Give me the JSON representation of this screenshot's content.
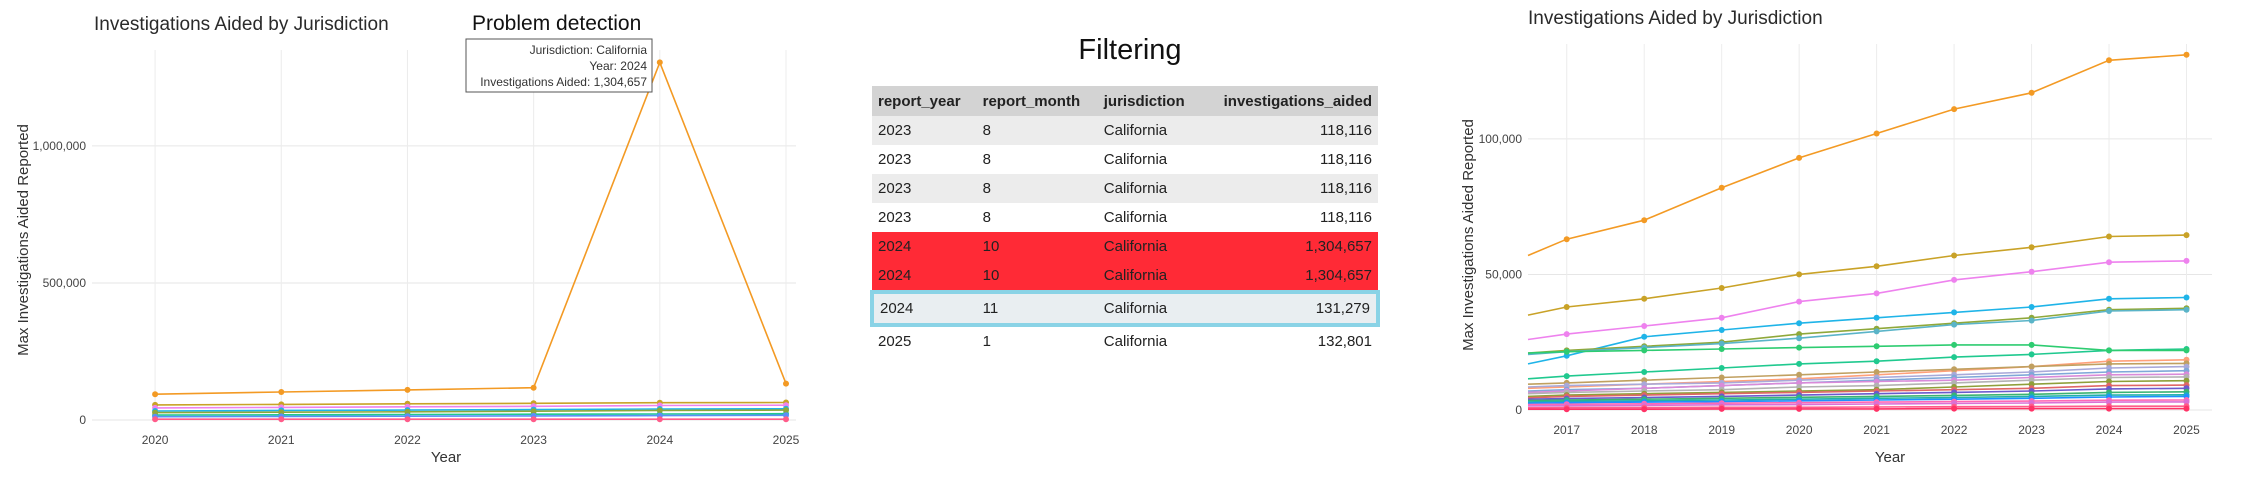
{
  "left_panel": {
    "problem_title": "Problem detection",
    "tooltip": {
      "line1": "Jurisdiction: California",
      "line2": "Year: 2024",
      "line3": "Investigations Aided: 1,304,657"
    }
  },
  "table_panel": {
    "title": "Filtering",
    "columns": [
      "report_year",
      "report_month",
      "jurisdiction",
      "investigations_aided"
    ],
    "rows": [
      {
        "report_year": "2023",
        "report_month": "8",
        "jurisdiction": "California",
        "investigations_aided": "118,116",
        "status": "normal"
      },
      {
        "report_year": "2023",
        "report_month": "8",
        "jurisdiction": "California",
        "investigations_aided": "118,116",
        "status": "normal"
      },
      {
        "report_year": "2023",
        "report_month": "8",
        "jurisdiction": "California",
        "investigations_aided": "118,116",
        "status": "normal"
      },
      {
        "report_year": "2023",
        "report_month": "8",
        "jurisdiction": "California",
        "investigations_aided": "118,116",
        "status": "normal"
      },
      {
        "report_year": "2024",
        "report_month": "10",
        "jurisdiction": "California",
        "investigations_aided": "1,304,657",
        "status": "problem"
      },
      {
        "report_year": "2024",
        "report_month": "10",
        "jurisdiction": "California",
        "investigations_aided": "1,304,657",
        "status": "problem"
      },
      {
        "report_year": "2024",
        "report_month": "11",
        "jurisdiction": "California",
        "investigations_aided": "131,279",
        "status": "selected"
      },
      {
        "report_year": "2025",
        "report_month": "1",
        "jurisdiction": "California",
        "investigations_aided": "132,801",
        "status": "normal"
      }
    ]
  },
  "chart_data": [
    {
      "type": "line",
      "title": "Investigations Aided by Jurisdiction",
      "xlabel": "Year",
      "ylabel": "Max Investigations Aided Reported",
      "x": [
        2020,
        2021,
        2022,
        2023,
        2024,
        2025
      ],
      "xlim": [
        2019.5,
        2025
      ],
      "ylim": [
        0,
        1350000
      ],
      "yticks": [
        0,
        500000,
        1000000
      ],
      "ytick_labels": [
        "0",
        "500,000",
        "1,000,000"
      ],
      "xtick_labels": [
        "2020",
        "2021",
        "2022",
        "2023",
        "2024",
        "2025"
      ],
      "grid": true,
      "series": [
        {
          "color": "#f39a24",
          "values": [
            94000,
            102000,
            110000,
            118000,
            1304657,
            132801
          ],
          "highlight": true
        },
        {
          "color": "#c9a227",
          "values": [
            55000,
            57000,
            59000,
            61000,
            63000,
            64000
          ]
        },
        {
          "color": "#ee82ee",
          "values": [
            44000,
            46000,
            48000,
            50000,
            53000,
            54000
          ]
        },
        {
          "color": "#1fb4e8",
          "values": [
            33000,
            35000,
            36000,
            38000,
            40000,
            41000
          ]
        },
        {
          "color": "#20c98f",
          "values": [
            18000,
            19000,
            20000,
            21000,
            22000,
            23000
          ]
        },
        {
          "color": "#8fa83a",
          "values": [
            27000,
            28500,
            30000,
            32000,
            35000,
            36000
          ]
        },
        {
          "color": "#5b8ff9",
          "values": [
            12000,
            13000,
            14000,
            15000,
            16000,
            17000
          ]
        },
        {
          "color": "#ff5c8a",
          "values": [
            3000,
            3000,
            3000,
            3000,
            3000,
            3000
          ]
        }
      ]
    },
    {
      "type": "line",
      "title": "Investigations Aided by Jurisdiction",
      "xlabel": "Year",
      "ylabel": "Max Investigations Aided Reported",
      "x": [
        2016.5,
        2017,
        2018,
        2019,
        2020,
        2021,
        2022,
        2023,
        2024,
        2025
      ],
      "xlim": [
        2016.5,
        2025.2
      ],
      "ylim": [
        0,
        135000
      ],
      "yticks": [
        0,
        50000,
        100000
      ],
      "ytick_labels": [
        "0",
        "50,000",
        "100,000"
      ],
      "xtick_labels": [
        "2017",
        "2018",
        "2019",
        "2020",
        "2021",
        "2022",
        "2023",
        "2024",
        "2025"
      ],
      "grid": true,
      "series": [
        {
          "color": "#f39a24",
          "values": [
            57000,
            63000,
            70000,
            82000,
            93000,
            102000,
            111000,
            117000,
            129000,
            131000
          ]
        },
        {
          "color": "#c9a227",
          "values": [
            35000,
            38000,
            41000,
            45000,
            50000,
            53000,
            57000,
            60000,
            64000,
            64500
          ]
        },
        {
          "color": "#ee82ee",
          "values": [
            26000,
            28000,
            31000,
            34000,
            40000,
            43000,
            48000,
            51000,
            54500,
            55000
          ]
        },
        {
          "color": "#1fb4e8",
          "values": [
            17000,
            20000,
            27000,
            29500,
            32000,
            34000,
            36000,
            38000,
            41000,
            41500
          ]
        },
        {
          "color": "#8fa83a",
          "values": [
            21000,
            22000,
            23500,
            25000,
            28000,
            30000,
            32000,
            34000,
            37000,
            37500
          ]
        },
        {
          "color": "#5ab4c8",
          "values": [
            20500,
            21500,
            23000,
            24500,
            26500,
            29000,
            31500,
            33000,
            36500,
            37000
          ]
        },
        {
          "color": "#20c98f",
          "values": [
            11500,
            12500,
            14000,
            15500,
            17000,
            18000,
            19500,
            20500,
            22000,
            22500
          ]
        },
        {
          "color": "#2ecc71",
          "values": [
            21000,
            21500,
            22000,
            22500,
            23000,
            23500,
            24000,
            24000,
            22000,
            22000
          ]
        },
        {
          "color": "#ffa07a",
          "values": [
            8000,
            8500,
            9500,
            10500,
            11500,
            13000,
            14500,
            16000,
            18000,
            18500
          ]
        },
        {
          "color": "#c0a060",
          "values": [
            9500,
            10000,
            11000,
            12000,
            13000,
            14000,
            15000,
            16000,
            17000,
            17200
          ]
        },
        {
          "color": "#a9a9d9",
          "values": [
            8500,
            9000,
            9500,
            10000,
            11000,
            12000,
            13000,
            14000,
            15500,
            16000
          ]
        },
        {
          "color": "#7fa8d8",
          "values": [
            7000,
            7500,
            8000,
            9000,
            10000,
            11000,
            12000,
            13000,
            14000,
            14500
          ]
        },
        {
          "color": "#d98ad9",
          "values": [
            6500,
            7000,
            8000,
            9000,
            10000,
            10500,
            11000,
            12000,
            13000,
            13200
          ]
        },
        {
          "color": "#b3b3b3",
          "values": [
            6000,
            6500,
            7000,
            7500,
            8500,
            9000,
            10000,
            11000,
            12000,
            12200
          ]
        },
        {
          "color": "#8f9f3a",
          "values": [
            5000,
            5500,
            6000,
            6500,
            7000,
            7500,
            8500,
            9500,
            10500,
            10800
          ]
        },
        {
          "color": "#e06666",
          "values": [
            4500,
            5000,
            5500,
            6000,
            6500,
            7000,
            7500,
            8000,
            9000,
            9200
          ]
        },
        {
          "color": "#6a5acd",
          "values": [
            4000,
            4200,
            4600,
            5000,
            5500,
            6000,
            6500,
            7000,
            7800,
            8000
          ]
        },
        {
          "color": "#3cb371",
          "values": [
            3500,
            3700,
            4000,
            4300,
            4700,
            5000,
            5400,
            5800,
            6500,
            6700
          ]
        },
        {
          "color": "#20b2aa",
          "values": [
            3000,
            3200,
            3400,
            3700,
            4000,
            4300,
            4600,
            5000,
            5500,
            5600
          ]
        },
        {
          "color": "#1e90ff",
          "values": [
            2500,
            2700,
            2900,
            3100,
            3400,
            3700,
            4000,
            4300,
            4800,
            5000
          ]
        },
        {
          "color": "#ff69b4",
          "values": [
            2000,
            2100,
            2300,
            2500,
            2700,
            2900,
            3100,
            3300,
            3600,
            3700
          ]
        },
        {
          "color": "#da70d6",
          "values": [
            1500,
            1600,
            1700,
            1900,
            2000,
            2200,
            2400,
            2600,
            2900,
            3000
          ]
        },
        {
          "color": "#ff5c8a",
          "values": [
            800,
            900,
            900,
            1000,
            1000,
            1100,
            1200,
            1300,
            1400,
            1400
          ]
        },
        {
          "color": "#ff3366",
          "values": [
            300,
            300,
            300,
            400,
            400,
            400,
            500,
            500,
            500,
            500
          ]
        }
      ]
    }
  ]
}
